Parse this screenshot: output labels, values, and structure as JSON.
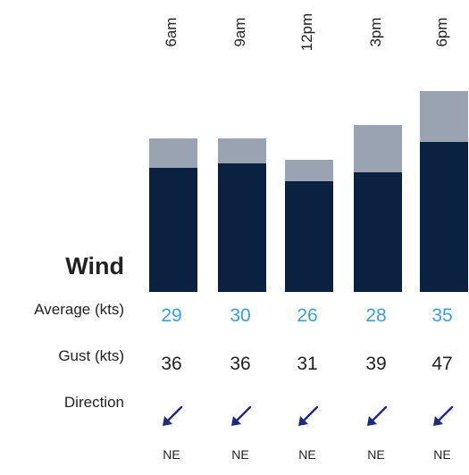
{
  "section": {
    "title": "Wind",
    "row_labels": {
      "average": "Average (kts)",
      "gust": "Gust (kts)",
      "direction": "Direction"
    }
  },
  "chart_data": {
    "type": "bar",
    "title": "Wind",
    "categories": [
      "6am",
      "9am",
      "12pm",
      "3pm",
      "6pm"
    ],
    "series": [
      {
        "name": "Average (kts)",
        "values": [
          29,
          30,
          26,
          28,
          35
        ],
        "color": "#0b2142"
      },
      {
        "name": "Gust (kts)",
        "values": [
          36,
          36,
          31,
          39,
          47
        ],
        "color": "#9aa3b1"
      }
    ],
    "directions": [
      "NE",
      "NE",
      "NE",
      "NE",
      "NE"
    ],
    "colors": {
      "average_text": "#3a9fdd",
      "gust_text": "#222222",
      "arrow": "#1f2a78"
    },
    "ylim": [
      0,
      47
    ],
    "grid": false
  }
}
